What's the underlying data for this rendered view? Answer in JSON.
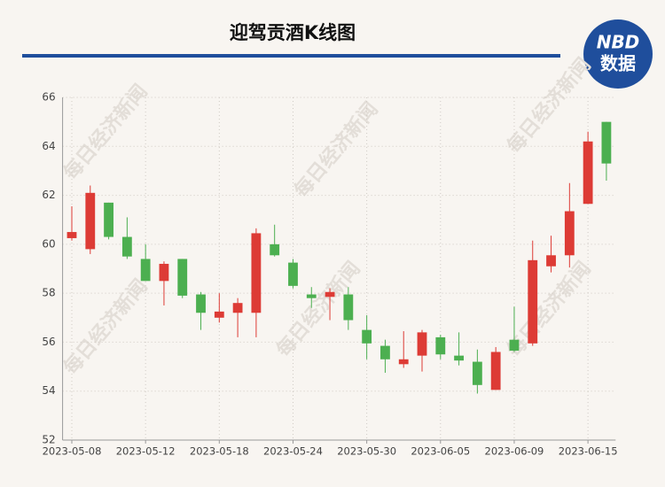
{
  "chart_data": {
    "type": "candlestick",
    "title": "迎驾贡酒K线图",
    "logo": {
      "top": "NBD",
      "bottom": "数据"
    },
    "watermark": "每日经济新闻",
    "categories": [
      "2023-05-08",
      null,
      null,
      null,
      "2023-05-12",
      null,
      null,
      null,
      "2023-05-18",
      null,
      null,
      null,
      "2023-05-24",
      null,
      null,
      null,
      "2023-05-30",
      null,
      null,
      null,
      "2023-06-05",
      null,
      null,
      null,
      "2023-06-09",
      null,
      null,
      null,
      "2023-06-15",
      null
    ],
    "open": [
      60.25,
      59.8,
      61.7,
      60.3,
      59.4,
      58.5,
      59.4,
      57.95,
      57.0,
      57.2,
      57.2,
      60.0,
      59.25,
      57.95,
      57.85,
      57.95,
      56.5,
      55.85,
      55.1,
      55.45,
      56.2,
      55.45,
      55.2,
      54.05,
      56.1,
      55.95,
      59.1,
      59.55,
      61.65,
      65.0
    ],
    "close": [
      60.5,
      62.1,
      60.3,
      59.5,
      58.5,
      59.2,
      57.9,
      57.2,
      57.25,
      57.6,
      60.45,
      59.55,
      58.3,
      57.8,
      58.05,
      56.9,
      55.95,
      55.3,
      55.3,
      56.4,
      55.5,
      55.25,
      54.25,
      55.6,
      55.65,
      59.35,
      59.55,
      61.35,
      64.2,
      63.3
    ],
    "low": [
      60.15,
      59.6,
      60.2,
      59.4,
      58.5,
      57.5,
      57.8,
      56.5,
      56.8,
      56.2,
      56.2,
      59.5,
      58.2,
      57.4,
      56.9,
      56.5,
      55.3,
      54.75,
      54.95,
      54.8,
      55.3,
      55.05,
      53.9,
      54.05,
      55.6,
      55.85,
      58.85,
      59.05,
      61.65,
      62.6
    ],
    "high": [
      61.55,
      62.4,
      61.7,
      61.1,
      60.0,
      59.3,
      59.4,
      58.05,
      58.0,
      57.8,
      60.65,
      60.8,
      59.4,
      58.25,
      58.2,
      58.25,
      57.1,
      56.1,
      56.45,
      56.5,
      56.3,
      56.4,
      55.7,
      55.8,
      57.45,
      60.15,
      60.35,
      62.5,
      64.6,
      65.0
    ],
    "up_color": "#dd3b35",
    "down_color": "#4caf50",
    "ylim": [
      52,
      66
    ],
    "yticks": [
      52,
      54,
      56,
      58,
      60,
      62,
      64,
      66
    ],
    "grid": true
  }
}
